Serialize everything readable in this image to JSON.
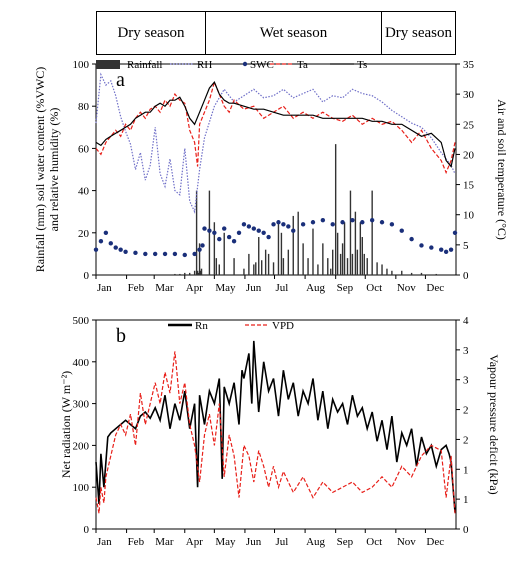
{
  "seasons": [
    {
      "label": "Dry season"
    },
    {
      "label": "Wet season"
    },
    {
      "label": "Dry season"
    }
  ],
  "months": [
    "Jan",
    "Feb",
    "Mar",
    "Apr",
    "May",
    "Jun",
    "Jul",
    "Aug",
    "Sep",
    "Oct",
    "Nov",
    "Dec"
  ],
  "colors": {
    "rainfall": "#333333",
    "rh": "#6f6fc8",
    "swc": "#1a2f7a",
    "ta": "#e8201a",
    "ts": "#000000",
    "rn": "#000000",
    "vpd": "#e8201a"
  },
  "chart_data": [
    {
      "panel_label": "a",
      "type": "line",
      "ylabel_left": "Rainfall (mm) soil water content (%VWC) and relative humidity (%)",
      "ylabel_right": "Air and soil temperature (°C)",
      "left_ticks": [
        "0",
        "20",
        "40",
        "60",
        "80",
        "100"
      ],
      "right_ticks": [
        "0",
        "5",
        "10",
        "15",
        "20",
        "25",
        "30",
        "35"
      ],
      "ylim_left": [
        0,
        100
      ],
      "ylim_right": [
        0,
        35
      ],
      "legend": [
        "Rainfall",
        "RH",
        "SWC",
        "Ta",
        "Ts"
      ],
      "series": [
        {
          "name": "Rainfall",
          "axis": "left",
          "style": "bars",
          "x": [
            0,
            25,
            80,
            85,
            90,
            95,
            100,
            102,
            103,
            104,
            105,
            106,
            107,
            115,
            120,
            122,
            125,
            130,
            140,
            150,
            155,
            160,
            162,
            165,
            168,
            172,
            175,
            180,
            185,
            188,
            190,
            195,
            200,
            205,
            210,
            215,
            220,
            225,
            230,
            235,
            238,
            240,
            243,
            245,
            248,
            250,
            252,
            255,
            258,
            260,
            263,
            265,
            268,
            270,
            272,
            275,
            280,
            285,
            290,
            295,
            300,
            310,
            320,
            330,
            345
          ],
          "y": [
            0.5,
            0.3,
            0.5,
            0.5,
            1,
            1,
            2,
            40,
            2,
            1,
            15,
            2,
            3,
            40,
            25,
            8,
            5,
            20,
            8,
            3,
            10,
            5,
            6,
            18,
            7,
            12,
            10,
            6,
            25,
            20,
            8,
            12,
            28,
            30,
            15,
            8,
            22,
            5,
            15,
            8,
            3,
            12,
            62,
            20,
            10,
            15,
            25,
            8,
            40,
            10,
            30,
            12,
            25,
            18,
            10,
            8,
            40,
            6,
            5,
            3,
            2,
            2,
            1,
            1,
            0.5
          ]
        },
        {
          "name": "RH",
          "axis": "left",
          "style": "dotted-line",
          "x": [
            0,
            5,
            10,
            15,
            20,
            25,
            30,
            35,
            40,
            45,
            50,
            55,
            60,
            65,
            70,
            75,
            80,
            85,
            90,
            95,
            100,
            105,
            110,
            120,
            130,
            140,
            150,
            160,
            170,
            180,
            190,
            200,
            210,
            220,
            230,
            240,
            250,
            260,
            270,
            280,
            290,
            300,
            310,
            320,
            330,
            340,
            350,
            360,
            364
          ],
          "y": [
            72,
            95,
            90,
            92,
            85,
            75,
            68,
            62,
            50,
            58,
            45,
            52,
            70,
            48,
            42,
            55,
            40,
            38,
            60,
            35,
            30,
            50,
            65,
            80,
            88,
            82,
            85,
            88,
            84,
            85,
            88,
            84,
            86,
            88,
            82,
            85,
            84,
            88,
            86,
            85,
            82,
            78,
            75,
            72,
            70,
            65,
            58,
            52,
            48
          ]
        },
        {
          "name": "SWC",
          "axis": "left",
          "style": "dots",
          "x": [
            0,
            5,
            10,
            15,
            20,
            25,
            30,
            40,
            50,
            60,
            70,
            80,
            90,
            100,
            105,
            108,
            110,
            115,
            120,
            125,
            130,
            135,
            140,
            145,
            150,
            155,
            160,
            165,
            170,
            175,
            180,
            185,
            190,
            195,
            200,
            210,
            220,
            230,
            240,
            250,
            260,
            270,
            280,
            290,
            300,
            310,
            320,
            330,
            340,
            350,
            355,
            360,
            364
          ],
          "y": [
            12,
            16,
            20,
            15,
            13,
            12,
            11,
            10.5,
            10,
            10,
            10,
            10,
            9.5,
            10,
            12,
            14,
            22,
            21,
            20,
            17,
            22,
            18,
            16,
            20,
            24,
            23,
            22,
            21,
            20,
            18,
            24,
            25,
            24,
            23,
            21,
            24,
            25,
            26,
            24,
            25,
            26,
            25,
            26,
            25,
            24,
            21,
            17,
            14,
            13,
            12,
            11,
            12,
            20
          ]
        },
        {
          "name": "Ta",
          "axis": "right",
          "style": "dashed-line",
          "x": [
            0,
            5,
            10,
            15,
            20,
            25,
            30,
            35,
            40,
            45,
            50,
            55,
            60,
            65,
            70,
            75,
            80,
            85,
            90,
            95,
            100,
            103,
            105,
            110,
            115,
            120,
            125,
            130,
            135,
            140,
            150,
            160,
            170,
            180,
            190,
            200,
            210,
            220,
            230,
            240,
            250,
            260,
            270,
            280,
            290,
            300,
            310,
            320,
            330,
            340,
            350,
            355,
            360,
            364
          ],
          "y": [
            21,
            20,
            22,
            23,
            24,
            23,
            25,
            24,
            26,
            27,
            26,
            27.5,
            28,
            27,
            29,
            28,
            30,
            29,
            28.5,
            24,
            22,
            18,
            25,
            27,
            29,
            32,
            30,
            28,
            27,
            29,
            27.5,
            28,
            26,
            27,
            28,
            26,
            27,
            26,
            27,
            26,
            25.5,
            26.5,
            25,
            26,
            25,
            25.5,
            24,
            22,
            24,
            21,
            19,
            17,
            19,
            22
          ]
        },
        {
          "name": "Ts",
          "axis": "right",
          "style": "line",
          "x": [
            0,
            5,
            10,
            15,
            20,
            25,
            30,
            35,
            40,
            45,
            50,
            55,
            60,
            65,
            70,
            75,
            80,
            85,
            90,
            95,
            100,
            105,
            110,
            115,
            120,
            125,
            130,
            135,
            140,
            150,
            160,
            170,
            180,
            190,
            200,
            210,
            220,
            230,
            240,
            250,
            260,
            270,
            280,
            290,
            300,
            310,
            320,
            330,
            340,
            350,
            355,
            360,
            364
          ],
          "y": [
            22,
            21.5,
            22.5,
            23,
            23.5,
            24,
            24.5,
            25,
            26,
            26.5,
            27,
            27,
            28,
            28.5,
            28,
            29,
            29,
            29.5,
            28,
            26,
            25,
            27,
            29,
            31,
            32,
            30,
            29,
            28.5,
            28.5,
            28,
            27.5,
            27.5,
            27,
            26.5,
            26.5,
            26.5,
            26.5,
            26,
            26,
            26,
            26,
            26,
            25.5,
            25.5,
            25,
            25,
            24,
            23,
            23.5,
            22,
            19,
            18,
            21
          ]
        }
      ]
    },
    {
      "panel_label": "b",
      "type": "line",
      "ylabel_left": "Net radiation (W m⁻²)",
      "ylabel_right": "Vapour pressure deficit (kPa)",
      "left_ticks": [
        "0",
        "100",
        "200",
        "300",
        "400",
        "500"
      ],
      "right_ticks": [
        "0",
        "1",
        "1",
        "2",
        "2",
        "3",
        "3",
        "4"
      ],
      "ylim_left": [
        0,
        500
      ],
      "ylim_right": [
        0,
        4
      ],
      "legend": [
        "Rn",
        "VPD"
      ],
      "series": [
        {
          "name": "Rn",
          "axis": "left",
          "style": "line",
          "x": [
            0,
            3,
            5,
            8,
            10,
            12,
            15,
            20,
            25,
            30,
            35,
            40,
            45,
            50,
            55,
            60,
            65,
            70,
            75,
            80,
            85,
            90,
            95,
            100,
            103,
            105,
            110,
            115,
            120,
            125,
            128,
            130,
            135,
            140,
            145,
            148,
            150,
            155,
            158,
            160,
            165,
            170,
            175,
            180,
            185,
            190,
            195,
            200,
            205,
            210,
            215,
            220,
            225,
            230,
            235,
            240,
            245,
            250,
            255,
            260,
            265,
            270,
            275,
            280,
            285,
            290,
            295,
            300,
            305,
            310,
            315,
            320,
            325,
            330,
            335,
            340,
            345,
            350,
            355,
            358,
            360,
            364
          ],
          "y": [
            160,
            60,
            180,
            100,
            160,
            220,
            230,
            240,
            250,
            260,
            250,
            240,
            270,
            280,
            265,
            290,
            260,
            320,
            240,
            300,
            260,
            330,
            240,
            300,
            100,
            320,
            250,
            330,
            300,
            360,
            120,
            340,
            300,
            350,
            250,
            380,
            360,
            420,
            300,
            450,
            280,
            400,
            330,
            360,
            270,
            380,
            310,
            350,
            270,
            330,
            300,
            360,
            260,
            330,
            240,
            310,
            280,
            300,
            250,
            320,
            270,
            290,
            240,
            280,
            210,
            260,
            190,
            270,
            160,
            230,
            200,
            240,
            150,
            220,
            180,
            200,
            150,
            190,
            200,
            180,
            160,
            40
          ]
        },
        {
          "name": "VPD",
          "axis": "right",
          "style": "dashed-line",
          "x": [
            0,
            3,
            5,
            8,
            10,
            15,
            20,
            25,
            30,
            35,
            40,
            45,
            50,
            55,
            60,
            65,
            70,
            75,
            80,
            85,
            90,
            95,
            100,
            105,
            110,
            115,
            120,
            125,
            130,
            135,
            140,
            145,
            150,
            155,
            160,
            165,
            170,
            175,
            180,
            185,
            190,
            195,
            200,
            210,
            220,
            230,
            240,
            250,
            260,
            270,
            280,
            290,
            300,
            310,
            320,
            330,
            340,
            350,
            355,
            360,
            364
          ],
          "y": [
            0.6,
            0.3,
            0.8,
            0.5,
            1.0,
            1.4,
            1.8,
            2.0,
            1.8,
            2.2,
            1.6,
            2.6,
            2.0,
            2.4,
            2.8,
            2.4,
            3.0,
            2.6,
            3.4,
            2.4,
            2.8,
            2.0,
            1.6,
            0.9,
            1.8,
            2.2,
            1.6,
            2.4,
            1.0,
            1.8,
            1.4,
            0.6,
            1.6,
            1.4,
            0.9,
            1.5,
            1.2,
            0.8,
            1.2,
            0.8,
            1.1,
            0.9,
            0.7,
            1.0,
            0.6,
            0.9,
            0.7,
            0.8,
            0.9,
            0.7,
            0.8,
            1.0,
            0.8,
            1.2,
            1.0,
            1.4,
            1.6,
            1.5,
            0.6,
            1.4,
            0.3
          ]
        }
      ]
    }
  ]
}
